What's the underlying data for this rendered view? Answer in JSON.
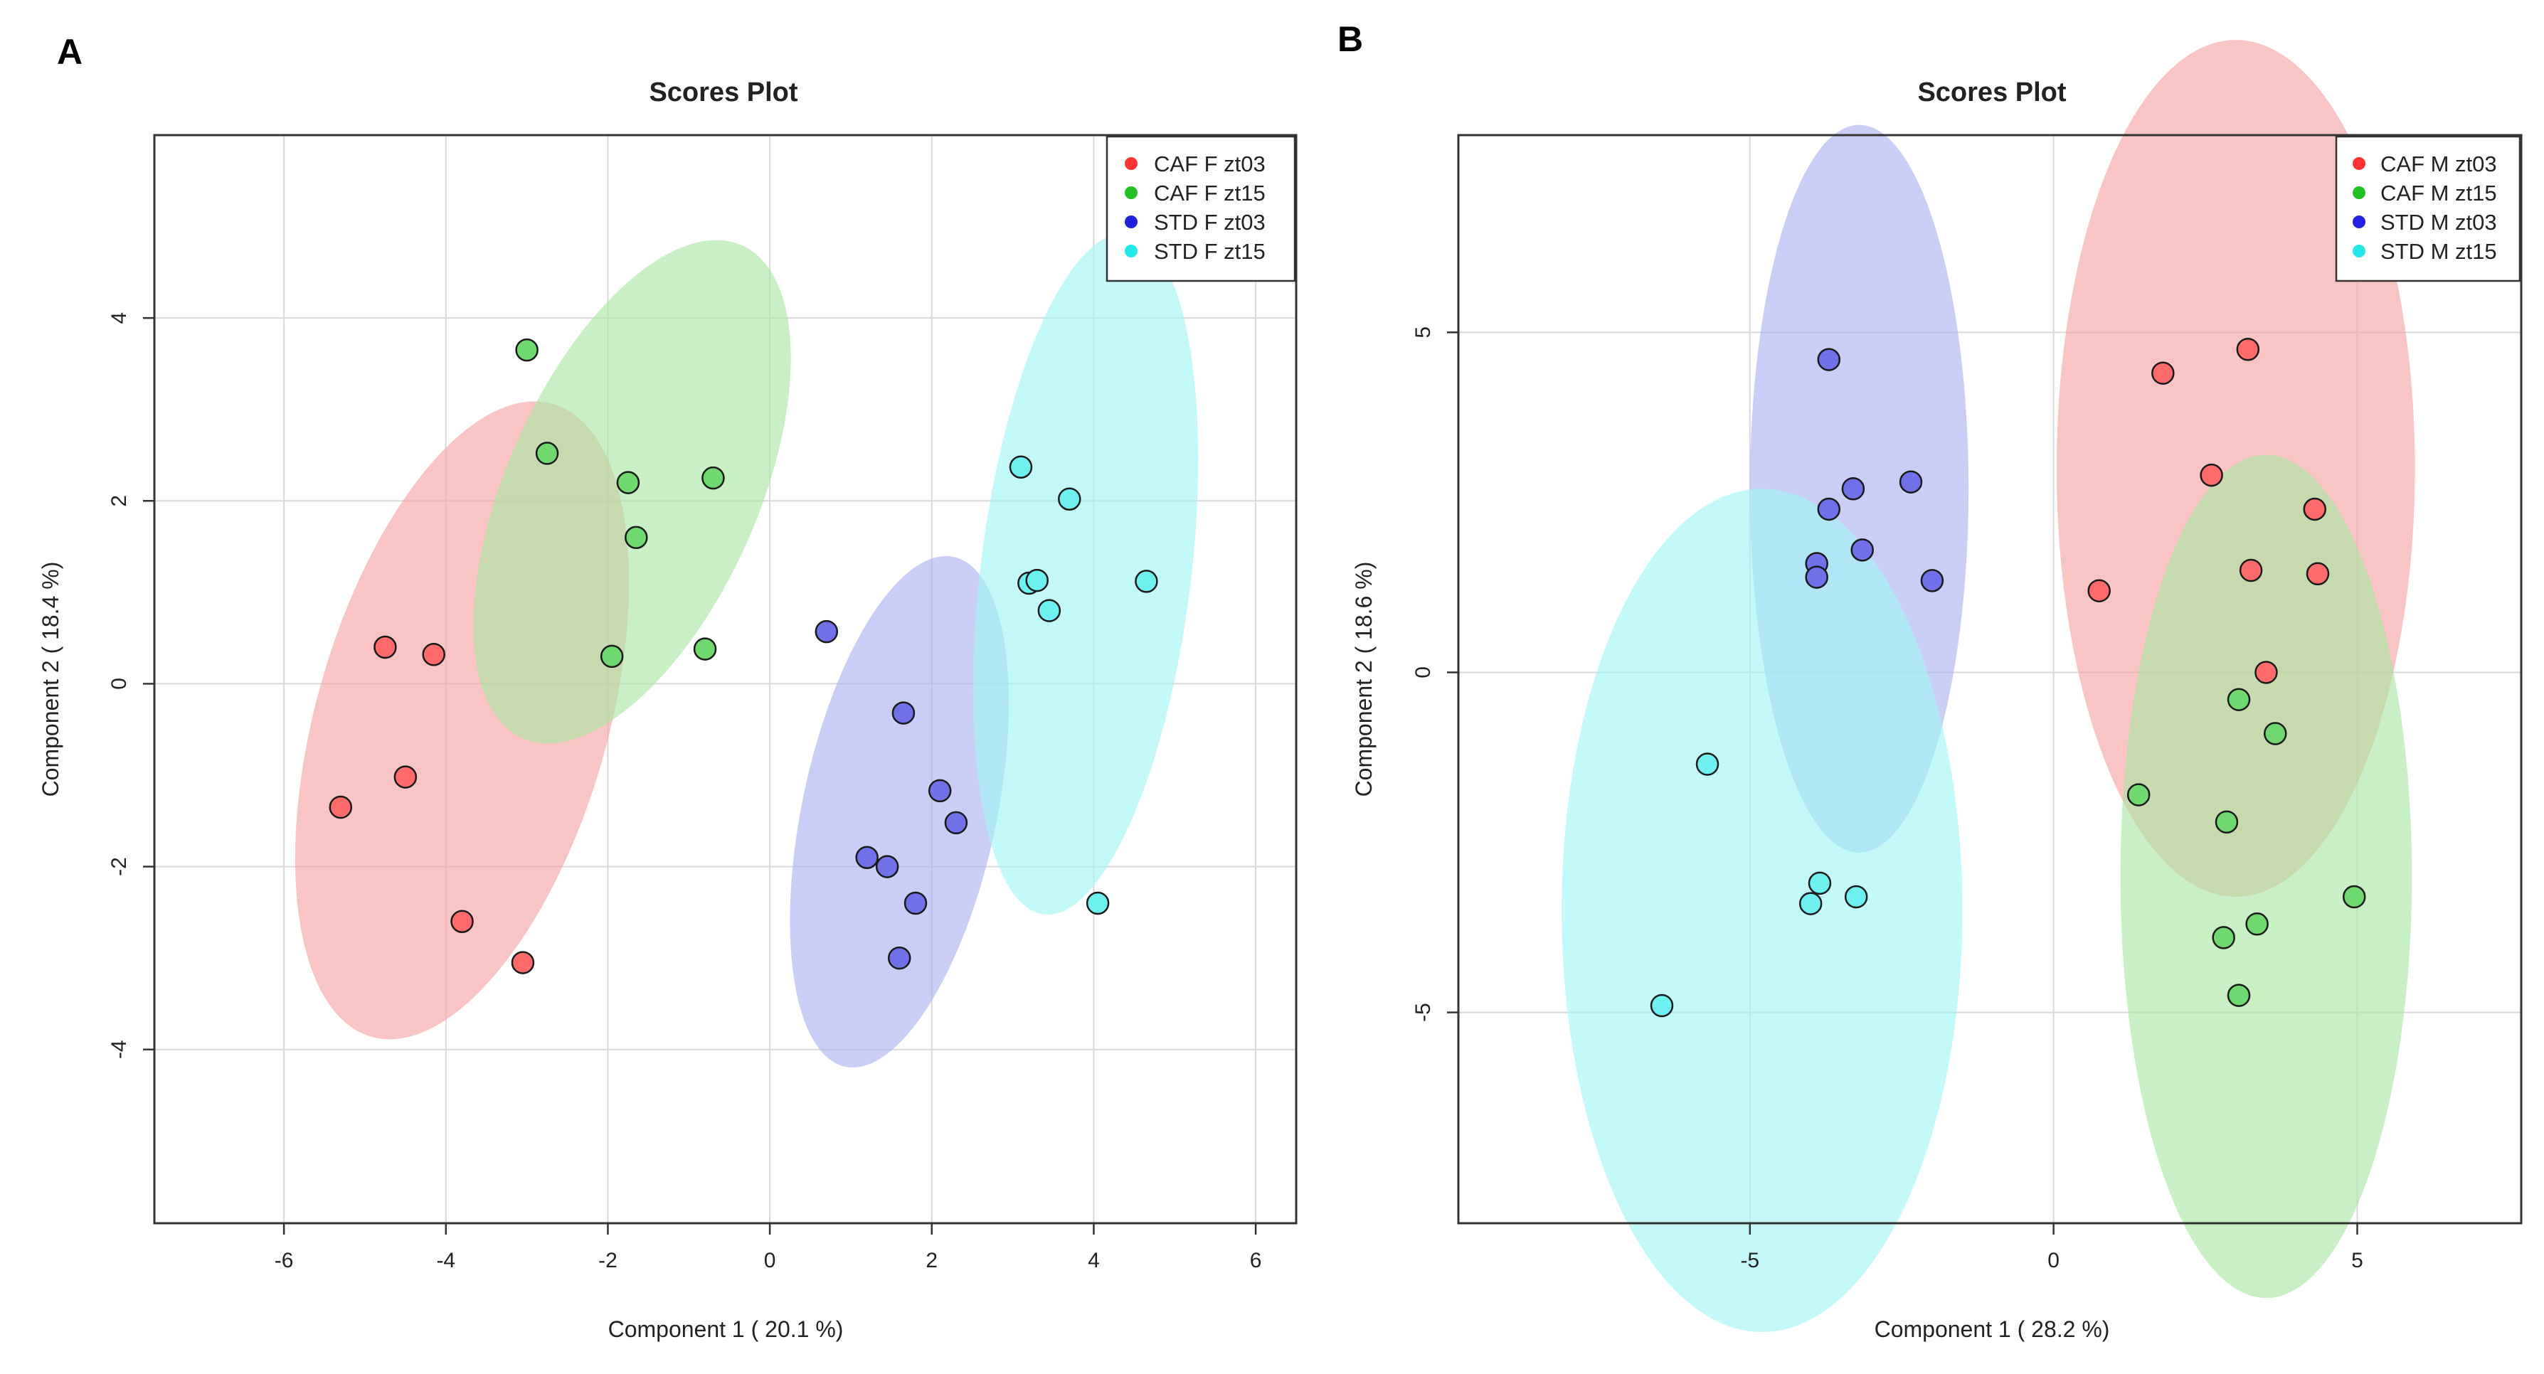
{
  "chart_data": [
    {
      "panel_letter": "A",
      "type": "scatter",
      "title": "Scores Plot",
      "xlabel": "Component 1 ( 20.1 %)",
      "ylabel": "Component 2 ( 18.4 %)",
      "xlim": [
        -7.6,
        6.5
      ],
      "ylim": [
        -5.9,
        6.0
      ],
      "xticks": [
        -6,
        -4,
        -2,
        0,
        2,
        4,
        6
      ],
      "yticks": [
        -4,
        -2,
        0,
        2,
        4
      ],
      "xtick_labels": [
        "-6",
        "-4",
        "-2",
        "0",
        "2",
        "4",
        "6"
      ],
      "ytick_labels": [
        "-4",
        "-2",
        "0",
        "2",
        "4"
      ],
      "grid": true,
      "legend_position": "top-right",
      "series": [
        {
          "name": "CAF F zt03",
          "color": "#ff3333",
          "fill": "#ff6b6b",
          "ellipse_color": "#f5a0a0",
          "ellipse": {
            "cx": -3.8,
            "cy": -0.4,
            "rx": 1.8,
            "ry": 3.6,
            "angle": 16
          },
          "points": [
            [
              -4.75,
              0.4
            ],
            [
              -4.15,
              0.32
            ],
            [
              -5.3,
              -1.35
            ],
            [
              -4.5,
              -1.02
            ],
            [
              -3.8,
              -2.6
            ],
            [
              -3.05,
              -3.05
            ]
          ]
        },
        {
          "name": "CAF F zt15",
          "color": "#22c022",
          "fill": "#6fd86f",
          "ellipse_color": "#a7e6a0",
          "ellipse": {
            "cx": -1.7,
            "cy": 2.1,
            "rx": 1.55,
            "ry": 2.95,
            "angle": 24
          },
          "points": [
            [
              -3.0,
              3.65
            ],
            [
              -2.75,
              2.52
            ],
            [
              -1.75,
              2.2
            ],
            [
              -0.7,
              2.25
            ],
            [
              -1.65,
              1.6
            ],
            [
              -1.95,
              0.3
            ],
            [
              -0.8,
              0.38
            ]
          ]
        },
        {
          "name": "STD F zt03",
          "color": "#2222dd",
          "fill": "#7070e8",
          "ellipse_color": "#aab0f0",
          "ellipse": {
            "cx": 1.6,
            "cy": -1.4,
            "rx": 1.2,
            "ry": 2.85,
            "angle": 12
          },
          "points": [
            [
              0.7,
              0.57
            ],
            [
              1.65,
              -0.32
            ],
            [
              2.1,
              -1.17
            ],
            [
              2.3,
              -1.52
            ],
            [
              1.2,
              -1.9
            ],
            [
              1.45,
              -2.0
            ],
            [
              1.8,
              -2.4
            ],
            [
              1.6,
              -3.0
            ]
          ]
        },
        {
          "name": "STD F zt15",
          "color": "#22e8e8",
          "fill": "#6ff0f0",
          "ellipse_color": "#a0f5f5",
          "ellipse": {
            "cx": 3.9,
            "cy": 1.2,
            "rx": 1.3,
            "ry": 3.75,
            "angle": 7
          },
          "points": [
            [
              3.1,
              2.37
            ],
            [
              3.7,
              2.02
            ],
            [
              3.2,
              1.1
            ],
            [
              3.3,
              1.13
            ],
            [
              4.65,
              1.12
            ],
            [
              3.45,
              0.8
            ],
            [
              4.05,
              -2.4
            ]
          ]
        }
      ]
    },
    {
      "panel_letter": "B",
      "type": "scatter",
      "title": "Scores Plot",
      "xlabel": "Component 1 ( 28.2 %)",
      "ylabel": "Component 2 ( 18.6 %)",
      "xlim": [
        -9.8,
        7.7
      ],
      "ylim": [
        -8.1,
        7.9
      ],
      "xticks": [
        -5,
        0,
        5
      ],
      "yticks": [
        -5,
        0,
        5
      ],
      "xtick_labels": [
        "-5",
        "0",
        "5"
      ],
      "ytick_labels": [
        "-5",
        "0",
        "5"
      ],
      "grid": true,
      "legend_position": "top-right",
      "series": [
        {
          "name": "CAF M zt03",
          "color": "#ff3333",
          "fill": "#ff6b6b",
          "ellipse_color": "#f5a0a0",
          "ellipse": {
            "cx": 3.0,
            "cy": 3.0,
            "rx": 2.95,
            "ry": 6.3,
            "angle": 0
          },
          "points": [
            [
              3.2,
              4.75
            ],
            [
              1.8,
              4.4
            ],
            [
              2.6,
              2.9
            ],
            [
              4.3,
              2.4
            ],
            [
              3.25,
              1.5
            ],
            [
              4.35,
              1.45
            ],
            [
              0.75,
              1.2
            ],
            [
              3.5,
              0.0
            ]
          ]
        },
        {
          "name": "CAF M zt15",
          "color": "#22c022",
          "fill": "#6fd86f",
          "ellipse_color": "#a7e6a0",
          "ellipse": {
            "cx": 3.5,
            "cy": -3.0,
            "rx": 2.4,
            "ry": 6.2,
            "angle": 0
          },
          "points": [
            [
              3.05,
              -0.4
            ],
            [
              3.65,
              -0.9
            ],
            [
              1.4,
              -1.8
            ],
            [
              2.85,
              -2.2
            ],
            [
              4.95,
              -3.3
            ],
            [
              3.35,
              -3.7
            ],
            [
              2.8,
              -3.9
            ],
            [
              3.05,
              -4.75
            ]
          ]
        },
        {
          "name": "STD M zt03",
          "color": "#2222dd",
          "fill": "#7070e8",
          "ellipse_color": "#aab0f0",
          "ellipse": {
            "cx": -3.2,
            "cy": 2.7,
            "rx": 1.8,
            "ry": 5.35,
            "angle": 0
          },
          "points": [
            [
              -3.7,
              4.6
            ],
            [
              -3.3,
              2.7
            ],
            [
              -2.35,
              2.8
            ],
            [
              -3.7,
              2.4
            ],
            [
              -3.15,
              1.8
            ],
            [
              -3.9,
              1.6
            ],
            [
              -3.9,
              1.4
            ],
            [
              -2.0,
              1.35
            ]
          ]
        },
        {
          "name": "STD M zt15",
          "color": "#22e8e8",
          "fill": "#6ff0f0",
          "ellipse_color": "#a0f5f5",
          "ellipse": {
            "cx": -4.8,
            "cy": -3.5,
            "rx": 3.3,
            "ry": 6.2,
            "angle": 0
          },
          "points": [
            [
              -5.7,
              -1.35
            ],
            [
              -3.85,
              -3.1
            ],
            [
              -3.25,
              -3.3
            ],
            [
              -4.0,
              -3.4
            ],
            [
              -6.45,
              -4.9
            ]
          ]
        }
      ]
    }
  ]
}
